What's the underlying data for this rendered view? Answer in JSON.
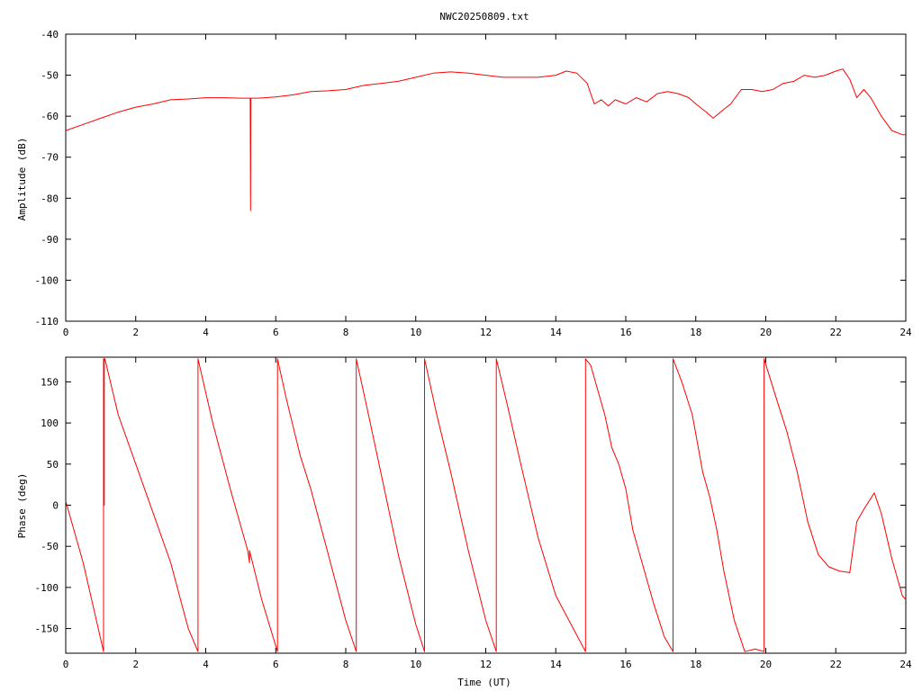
{
  "title": "NWC20250809.txt",
  "colors": {
    "trace": "#ff0000",
    "axis": "#000000",
    "background": "#ffffff"
  },
  "chart_data": [
    {
      "type": "line",
      "title": "NWC20250809.txt",
      "xlabel": "",
      "ylabel": "Amplitude (dB)",
      "xlim": [
        0,
        24
      ],
      "ylim": [
        -110,
        -40
      ],
      "xticks": [
        "0",
        "2",
        "4",
        "6",
        "8",
        "10",
        "12",
        "14",
        "16",
        "18",
        "20",
        "22",
        "24"
      ],
      "yticks": [
        "-40",
        "-50",
        "-60",
        "-70",
        "-80",
        "-90",
        "-100",
        "-110"
      ],
      "grid": false,
      "series": [
        {
          "x": [
            0,
            0.5,
            1,
            1.5,
            2,
            2.5,
            3,
            3.5,
            4,
            4.5,
            5,
            5.27,
            5.28,
            5.29,
            5.5,
            6,
            6.5,
            7,
            7.5,
            8,
            8.5,
            9,
            9.5,
            10,
            10.5,
            11,
            11.5,
            12,
            12.5,
            13,
            13.5,
            14,
            14.3,
            14.6,
            14.9,
            15.1,
            15.3,
            15.5,
            15.7,
            16,
            16.3,
            16.6,
            16.9,
            17.2,
            17.5,
            17.8,
            18,
            18.3,
            18.5,
            18.7,
            19,
            19.3,
            19.6,
            19.9,
            20.2,
            20.5,
            20.8,
            21.1,
            21.4,
            21.7,
            22,
            22.2,
            22.4,
            22.6,
            22.8,
            23,
            23.3,
            23.6,
            23.9,
            24
          ],
          "y": [
            -63.5,
            -62,
            -60.5,
            -59,
            -57.8,
            -57,
            -56,
            -55.8,
            -55.5,
            -55.5,
            -55.6,
            -55.6,
            -83,
            -55.6,
            -55.6,
            -55.3,
            -54.8,
            -54,
            -53.8,
            -53.5,
            -52.5,
            -52,
            -51.5,
            -50.5,
            -49.5,
            -49.2,
            -49.5,
            -50,
            -50.5,
            -50.5,
            -50.5,
            -50,
            -49,
            -49.5,
            -52,
            -57,
            -56,
            -57.5,
            -56,
            -57,
            -55.5,
            -56.5,
            -54.5,
            -54,
            -54.5,
            -55.5,
            -57,
            -59,
            -60.5,
            -59,
            -57,
            -53.5,
            -53.5,
            -54,
            -53.5,
            -52,
            -51.5,
            -50,
            -50.5,
            -50,
            -49,
            -48.5,
            -51,
            -55.5,
            -53.5,
            -55.5,
            -60,
            -63.5,
            -64.5,
            -64.5
          ]
        }
      ]
    },
    {
      "type": "line",
      "title": "",
      "xlabel": "Time (UT)",
      "ylabel": "Phase (deg)",
      "xlim": [
        0,
        24
      ],
      "ylim": [
        -180,
        180
      ],
      "xticks": [
        "0",
        "2",
        "4",
        "6",
        "8",
        "10",
        "12",
        "14",
        "16",
        "18",
        "20",
        "22",
        "24"
      ],
      "yticks": [
        "150",
        "100",
        "50",
        "0",
        "-50",
        "-100",
        "-150"
      ],
      "grid": false,
      "series": [
        {
          "x": [
            0,
            0.5,
            1.08,
            1.08,
            1.1,
            1.1,
            1.12,
            1.12,
            1.5,
            2,
            2.5,
            3,
            3.5,
            3.78,
            3.78,
            4.2,
            4.7,
            5.2,
            5.25,
            5.25,
            5.6,
            6.05,
            6.05,
            6.3,
            6.7,
            7,
            7.5,
            8,
            8.3,
            8.3,
            8.6,
            9,
            9.5,
            10,
            10.25,
            10.25,
            10.6,
            11,
            11.5,
            12,
            12.3,
            12.3,
            12.6,
            13,
            13.5,
            14,
            14.5,
            14.85,
            14.85,
            15,
            15.2,
            15.4,
            15.6,
            15.8,
            16,
            16.2,
            16.5,
            16.8,
            17.1,
            17.35,
            17.35,
            17.6,
            17.9,
            18.2,
            18.4,
            18.6,
            18.8,
            19.1,
            19.4,
            19.7,
            19.95,
            19.95,
            20.3,
            20.6,
            20.9,
            21.2,
            21.5,
            21.8,
            22.1,
            22.4,
            22.6,
            22.8,
            23.1,
            23.3,
            23.6,
            23.9,
            24
          ],
          "y": [
            5,
            -70,
            -178,
            178,
            0,
            178,
            178,
            178,
            110,
            50,
            -10,
            -70,
            -150,
            -178,
            178,
            100,
            20,
            -55,
            -70,
            -55,
            -115,
            -178,
            178,
            130,
            60,
            20,
            -60,
            -140,
            -178,
            178,
            120,
            40,
            -60,
            -145,
            -178,
            178,
            110,
            40,
            -55,
            -140,
            -178,
            178,
            125,
            50,
            -40,
            -110,
            -150,
            -178,
            178,
            170,
            140,
            110,
            70,
            50,
            20,
            -30,
            -75,
            -120,
            -160,
            -178,
            178,
            150,
            110,
            40,
            10,
            -30,
            -80,
            -140,
            -178,
            -175,
            -178,
            178,
            130,
            90,
            40,
            -20,
            -60,
            -75,
            -80,
            -82,
            -20,
            -5,
            15,
            -10,
            -65,
            -110,
            -115
          ]
        }
      ]
    }
  ]
}
